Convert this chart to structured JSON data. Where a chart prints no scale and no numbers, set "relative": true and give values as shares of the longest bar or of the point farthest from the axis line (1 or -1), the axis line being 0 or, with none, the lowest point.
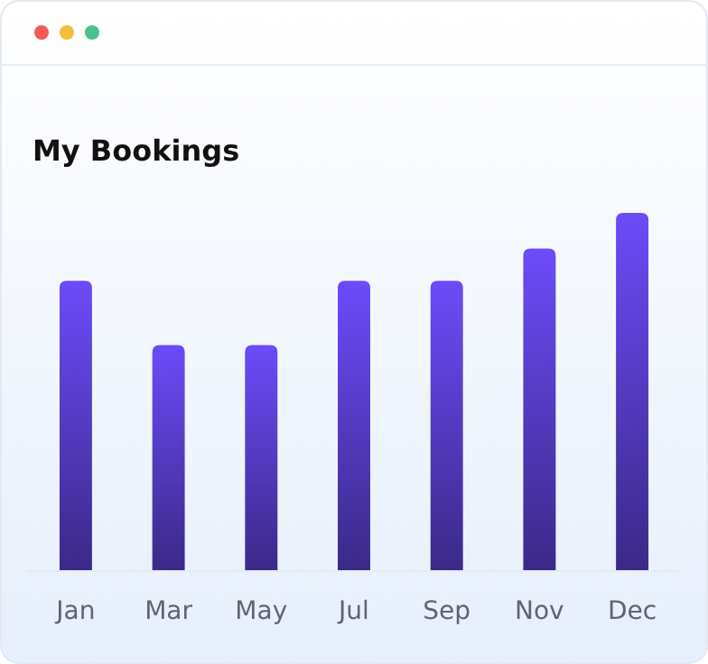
{
  "chart_data": {
    "type": "bar",
    "title": "My Bookings",
    "relative": true,
    "categories": [
      "Jan",
      "Mar",
      "May",
      "Jul",
      "Sep",
      "Nov",
      "Dec"
    ],
    "values": [
      0.81,
      0.63,
      0.63,
      0.81,
      0.81,
      0.9,
      1
    ],
    "color": "#5a3fd0"
  }
}
